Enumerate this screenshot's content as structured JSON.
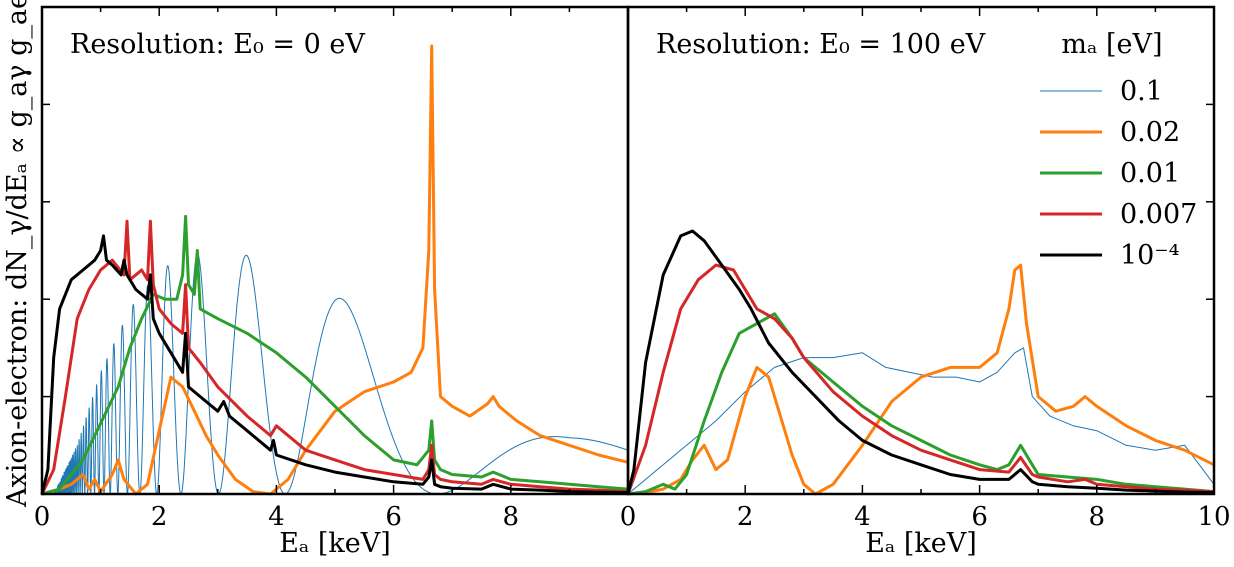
{
  "chart_data": [
    {
      "type": "line",
      "panel": "left",
      "annotation": "Resolution:  E₀ = 0 eV",
      "xlabel": "Eₐ [keV]",
      "ylabel": "Axion-electron:  dN_γ/dEₐ ∝ g_aγ g_ae",
      "xlim": [
        0,
        10
      ],
      "ylim": [
        0,
        1
      ],
      "xticks": [
        0,
        2,
        4,
        6,
        8
      ],
      "xtick_labels": [
        "0",
        "2",
        "4",
        "6",
        "8"
      ],
      "yticks_labeled": false,
      "series": [
        {
          "name": "0.1",
          "color": "#1f77b4",
          "width": 1,
          "style": "oscillating",
          "x": [
            0.2,
            0.6,
            1.0,
            1.5,
            2.0,
            2.5,
            3.0,
            3.5,
            4.0,
            4.5,
            5.0,
            5.5,
            6.0,
            6.5,
            7.0,
            7.5,
            8.0,
            8.5,
            9.0,
            9.5,
            10.0
          ],
          "envelope": [
            0.0,
            0.1,
            0.25,
            0.38,
            0.46,
            0.49,
            0.5,
            0.49,
            0.47,
            0.44,
            0.41,
            0.37,
            0.33,
            0.29,
            0.25,
            0.22,
            0.19,
            0.16,
            0.13,
            0.11,
            0.09
          ]
        },
        {
          "name": "0.02",
          "color": "#ff7f0e",
          "width": 3,
          "x": [
            0.0,
            0.3,
            0.5,
            0.7,
            0.8,
            0.9,
            1.0,
            1.2,
            1.3,
            1.4,
            1.6,
            1.8,
            2.0,
            2.2,
            2.4,
            2.6,
            2.8,
            3.0,
            3.3,
            3.6,
            3.9,
            4.2,
            4.5,
            5.0,
            5.5,
            6.0,
            6.3,
            6.5,
            6.6,
            6.65,
            6.7,
            6.8,
            7.0,
            7.3,
            7.6,
            7.7,
            7.8,
            8.1,
            8.5,
            9.0,
            9.5,
            10.0
          ],
          "y": [
            0.0,
            0.01,
            0.02,
            0.04,
            0.01,
            0.03,
            0.005,
            0.04,
            0.07,
            0.03,
            0.0,
            0.02,
            0.13,
            0.24,
            0.22,
            0.17,
            0.12,
            0.08,
            0.03,
            0.005,
            0.0,
            0.03,
            0.09,
            0.17,
            0.21,
            0.23,
            0.25,
            0.3,
            0.5,
            0.92,
            0.42,
            0.2,
            0.18,
            0.16,
            0.185,
            0.2,
            0.18,
            0.15,
            0.12,
            0.1,
            0.08,
            0.065
          ]
        },
        {
          "name": "0.01",
          "color": "#2ca02c",
          "width": 3,
          "x": [
            0.0,
            0.3,
            0.5,
            0.7,
            0.9,
            1.1,
            1.3,
            1.5,
            1.7,
            1.9,
            2.1,
            2.3,
            2.4,
            2.45,
            2.5,
            2.6,
            2.65,
            2.7,
            3.0,
            3.5,
            4.0,
            4.5,
            5.0,
            5.5,
            6.0,
            6.4,
            6.6,
            6.65,
            6.7,
            6.8,
            7.0,
            7.5,
            7.7,
            8.0,
            8.5,
            9.0,
            9.5,
            10.0
          ],
          "y": [
            0.0,
            0.01,
            0.04,
            0.07,
            0.12,
            0.17,
            0.22,
            0.3,
            0.36,
            0.41,
            0.4,
            0.4,
            0.45,
            0.57,
            0.43,
            0.41,
            0.5,
            0.38,
            0.36,
            0.33,
            0.29,
            0.24,
            0.18,
            0.12,
            0.07,
            0.06,
            0.09,
            0.15,
            0.07,
            0.05,
            0.04,
            0.035,
            0.045,
            0.03,
            0.025,
            0.02,
            0.015,
            0.01
          ]
        },
        {
          "name": "0.007",
          "color": "#d62728",
          "width": 3,
          "x": [
            0.0,
            0.2,
            0.4,
            0.6,
            0.8,
            1.0,
            1.2,
            1.4,
            1.45,
            1.5,
            1.6,
            1.7,
            1.8,
            1.85,
            1.9,
            2.0,
            2.2,
            2.4,
            2.45,
            2.5,
            2.7,
            3.0,
            3.5,
            3.9,
            4.0,
            4.5,
            5.0,
            5.5,
            6.0,
            6.5,
            6.6,
            6.65,
            6.7,
            6.8,
            7.0,
            7.5,
            7.7,
            8.0,
            8.5,
            9.0,
            9.5,
            10.0
          ],
          "y": [
            0.0,
            0.05,
            0.2,
            0.36,
            0.42,
            0.46,
            0.48,
            0.45,
            0.56,
            0.44,
            0.45,
            0.46,
            0.44,
            0.56,
            0.43,
            0.38,
            0.35,
            0.33,
            0.43,
            0.3,
            0.27,
            0.22,
            0.16,
            0.12,
            0.14,
            0.09,
            0.07,
            0.05,
            0.04,
            0.03,
            0.05,
            0.1,
            0.04,
            0.03,
            0.025,
            0.02,
            0.03,
            0.02,
            0.015,
            0.01,
            0.008,
            0.005
          ]
        },
        {
          "name": "10⁻⁴",
          "color": "#000000",
          "width": 3,
          "x": [
            0.0,
            0.1,
            0.2,
            0.3,
            0.5,
            0.7,
            0.9,
            1.0,
            1.05,
            1.1,
            1.2,
            1.35,
            1.4,
            1.45,
            1.6,
            1.8,
            1.85,
            1.9,
            2.0,
            2.2,
            2.4,
            2.45,
            2.5,
            2.7,
            3.0,
            3.1,
            3.2,
            3.5,
            3.9,
            3.95,
            4.0,
            4.5,
            5.0,
            5.5,
            6.0,
            6.5,
            6.6,
            6.65,
            6.7,
            6.8,
            7.0,
            7.5,
            7.7,
            8.0,
            8.5,
            9.0,
            9.5,
            10.0
          ],
          "y": [
            0.0,
            0.05,
            0.28,
            0.38,
            0.44,
            0.46,
            0.48,
            0.5,
            0.53,
            0.48,
            0.47,
            0.45,
            0.48,
            0.45,
            0.42,
            0.4,
            0.45,
            0.36,
            0.33,
            0.29,
            0.25,
            0.33,
            0.22,
            0.2,
            0.17,
            0.19,
            0.16,
            0.13,
            0.09,
            0.11,
            0.08,
            0.06,
            0.045,
            0.035,
            0.025,
            0.02,
            0.035,
            0.07,
            0.02,
            0.015,
            0.012,
            0.01,
            0.02,
            0.01,
            0.008,
            0.005,
            0.004,
            0.003
          ]
        }
      ]
    },
    {
      "type": "line",
      "panel": "right",
      "annotation": "Resolution:  E₀ = 100 eV",
      "xlabel": "Eₐ [keV]",
      "xlim": [
        0,
        10
      ],
      "ylim": [
        0,
        1
      ],
      "xticks": [
        0,
        2,
        4,
        6,
        8,
        10
      ],
      "xtick_labels": [
        "0",
        "2",
        "4",
        "6",
        "8",
        "10"
      ],
      "legend": {
        "title": "mₐ [eV]",
        "location": "top-right",
        "entries": [
          "0.1",
          "0.02",
          "0.01",
          "0.007",
          "10⁻⁴"
        ]
      },
      "series": [
        {
          "name": "0.1",
          "color": "#1f77b4",
          "width": 1,
          "x": [
            0.0,
            0.5,
            1.0,
            1.5,
            2.0,
            2.5,
            3.0,
            3.5,
            4.0,
            4.4,
            4.8,
            5.2,
            5.6,
            6.0,
            6.3,
            6.6,
            6.75,
            6.9,
            7.2,
            7.6,
            8.0,
            8.5,
            9.0,
            9.5,
            10.0
          ],
          "y": [
            0.0,
            0.05,
            0.1,
            0.15,
            0.21,
            0.26,
            0.28,
            0.28,
            0.29,
            0.26,
            0.25,
            0.24,
            0.24,
            0.23,
            0.25,
            0.29,
            0.3,
            0.2,
            0.16,
            0.14,
            0.13,
            0.1,
            0.09,
            0.1,
            0.02
          ]
        },
        {
          "name": "0.02",
          "color": "#ff7f0e",
          "width": 3,
          "x": [
            0.0,
            0.3,
            0.6,
            0.9,
            1.1,
            1.3,
            1.5,
            1.7,
            2.0,
            2.2,
            2.4,
            2.6,
            2.8,
            3.0,
            3.2,
            3.5,
            4.0,
            4.5,
            5.0,
            5.5,
            6.0,
            6.3,
            6.5,
            6.6,
            6.7,
            6.8,
            7.0,
            7.3,
            7.6,
            7.8,
            8.0,
            8.5,
            9.0,
            9.5,
            10.0
          ],
          "y": [
            0.0,
            0.003,
            0.01,
            0.03,
            0.07,
            0.1,
            0.05,
            0.07,
            0.2,
            0.26,
            0.24,
            0.16,
            0.08,
            0.02,
            0.0,
            0.02,
            0.1,
            0.19,
            0.24,
            0.26,
            0.26,
            0.29,
            0.38,
            0.46,
            0.47,
            0.35,
            0.2,
            0.17,
            0.18,
            0.2,
            0.18,
            0.14,
            0.11,
            0.09,
            0.06
          ]
        },
        {
          "name": "0.01",
          "color": "#2ca02c",
          "width": 3,
          "x": [
            0.0,
            0.3,
            0.6,
            0.8,
            1.0,
            1.3,
            1.6,
            1.9,
            2.2,
            2.5,
            2.8,
            3.0,
            3.5,
            4.0,
            4.5,
            5.0,
            5.5,
            6.0,
            6.3,
            6.5,
            6.7,
            6.9,
            7.0,
            7.5,
            8.0,
            8.5,
            9.0,
            9.5,
            10.0
          ],
          "y": [
            0.0,
            0.005,
            0.02,
            0.01,
            0.04,
            0.15,
            0.25,
            0.33,
            0.35,
            0.37,
            0.32,
            0.28,
            0.23,
            0.18,
            0.14,
            0.11,
            0.08,
            0.06,
            0.05,
            0.06,
            0.1,
            0.06,
            0.04,
            0.035,
            0.03,
            0.02,
            0.015,
            0.01,
            0.005
          ]
        },
        {
          "name": "0.007",
          "color": "#d62728",
          "width": 3,
          "x": [
            0.0,
            0.3,
            0.6,
            0.9,
            1.2,
            1.5,
            1.8,
            2.0,
            2.2,
            2.5,
            2.8,
            3.0,
            3.5,
            4.0,
            4.5,
            5.0,
            5.5,
            6.0,
            6.5,
            6.7,
            6.9,
            7.0,
            7.5,
            7.8,
            8.0,
            8.5,
            9.0,
            9.5,
            10.0
          ],
          "y": [
            0.0,
            0.1,
            0.25,
            0.38,
            0.44,
            0.47,
            0.46,
            0.42,
            0.38,
            0.36,
            0.32,
            0.28,
            0.21,
            0.16,
            0.12,
            0.09,
            0.07,
            0.05,
            0.045,
            0.075,
            0.04,
            0.035,
            0.025,
            0.03,
            0.02,
            0.015,
            0.01,
            0.008,
            0.005
          ]
        },
        {
          "name": "10⁻⁴",
          "color": "#000000",
          "width": 3,
          "x": [
            0.0,
            0.1,
            0.3,
            0.6,
            0.9,
            1.1,
            1.3,
            1.6,
            1.9,
            2.1,
            2.4,
            2.8,
            3.2,
            3.6,
            4.0,
            4.5,
            5.0,
            5.5,
            6.0,
            6.5,
            6.7,
            6.9,
            7.0,
            7.5,
            8.0,
            8.5,
            9.0,
            9.5,
            10.0
          ],
          "y": [
            0.0,
            0.05,
            0.27,
            0.45,
            0.53,
            0.54,
            0.52,
            0.47,
            0.42,
            0.38,
            0.31,
            0.25,
            0.2,
            0.15,
            0.11,
            0.08,
            0.06,
            0.04,
            0.03,
            0.03,
            0.05,
            0.025,
            0.02,
            0.015,
            0.012,
            0.008,
            0.006,
            0.004,
            0.003
          ]
        }
      ]
    }
  ]
}
